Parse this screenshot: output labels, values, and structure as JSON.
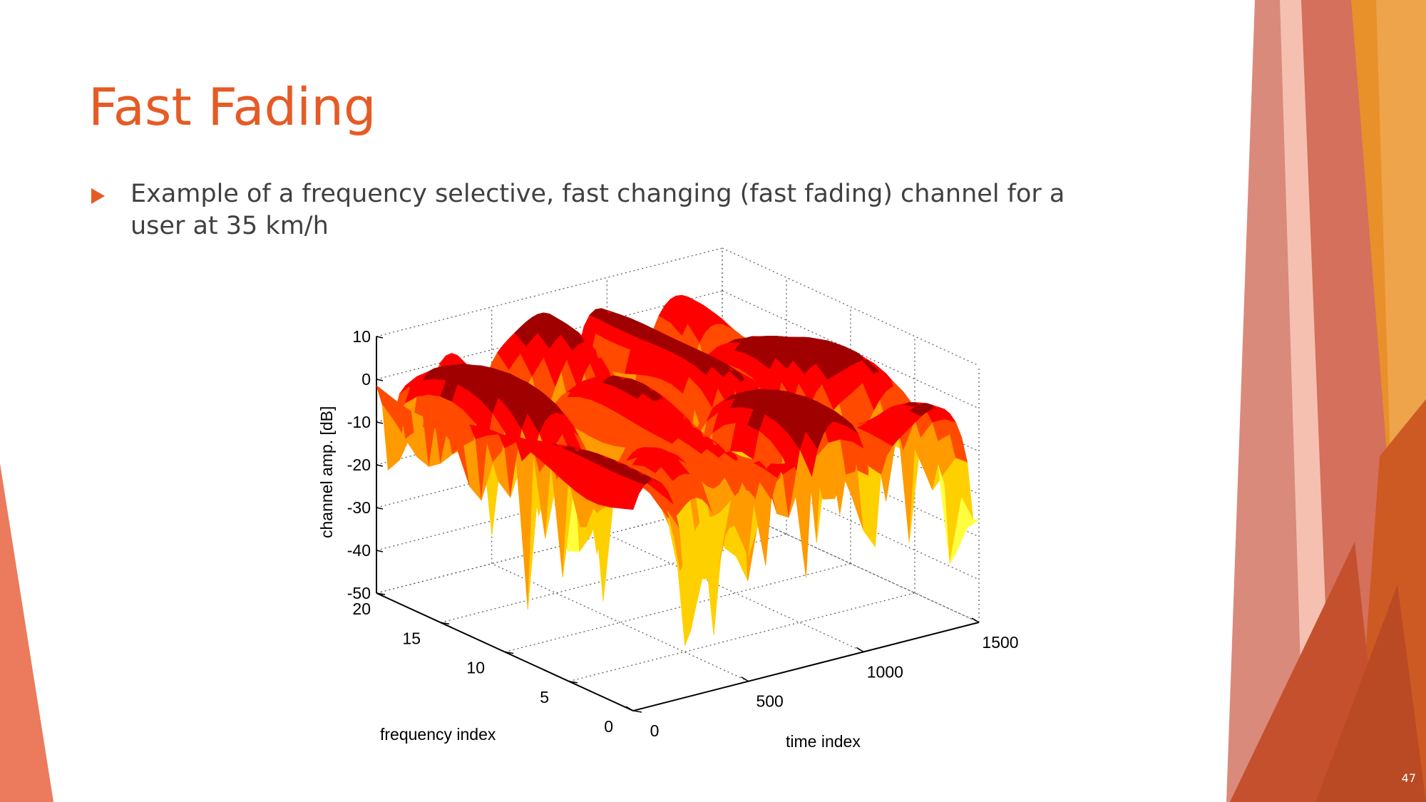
{
  "slide": {
    "title": "Fast Fading",
    "bullet": "Example of a frequency selective, fast changing (fast fading) channel for a user at 35 km/h",
    "page_number": "47"
  },
  "colors": {
    "accent": "#e55b26",
    "body_text": "#404040",
    "surface_peak": "#ff0000",
    "surface_dark": "#8b0000",
    "surface_mid": "#ffa500",
    "surface_low": "#ffff00",
    "surface_deep": "#00b4c8"
  },
  "chart_data": {
    "type": "surface3d",
    "xlabel": "time index",
    "ylabel": "frequency index",
    "zlabel": "channel amp. [dB]",
    "x_range": [
      0,
      1500
    ],
    "y_range": [
      0,
      20
    ],
    "z_range": [
      -50,
      10
    ],
    "x_ticks": [
      "0",
      "500",
      "1000",
      "1500"
    ],
    "y_ticks": [
      "0",
      "5",
      "10",
      "15",
      "20"
    ],
    "z_ticks": [
      "-50",
      "-40",
      "-30",
      "-20",
      "-10",
      "0",
      "10"
    ],
    "grid": true,
    "colormap": "jet (upper range, dark red peaks to cyan deep fades)"
  }
}
